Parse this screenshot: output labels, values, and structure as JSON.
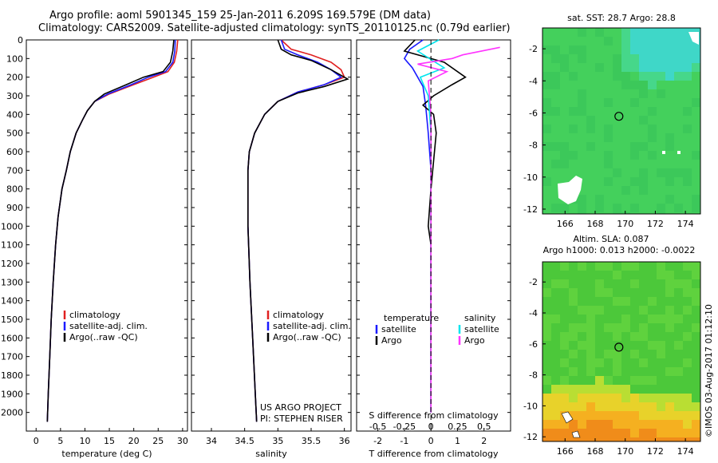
{
  "header": {
    "title_line1": "Argo profile: aoml 5901345_159 25-Jan-2011 6.209S 169.579E (DM data)",
    "title_line2": "Climatology: CARS2009. Satellite-adjusted climatology: synTS_20110125.nc (0.79d earlier)"
  },
  "side_text": "©IMOS 03-Aug-2017 01:12:10",
  "colors": {
    "climatology": "#e02020",
    "satellite": "#1a1aff",
    "argo": "#000000",
    "sat_t": "#00e5ee",
    "sat_s": "#ff33ff"
  },
  "chart_data": [
    {
      "type": "line",
      "xlabel": "temperature (deg C)",
      "xlim": [
        -2,
        31
      ],
      "ylim": [
        2100,
        0
      ],
      "xticks": [
        0,
        5,
        10,
        15,
        20,
        25,
        30
      ],
      "yticks": [
        0,
        100,
        200,
        300,
        400,
        500,
        600,
        700,
        800,
        900,
        1000,
        1100,
        1200,
        1300,
        1400,
        1500,
        1600,
        1700,
        1800,
        1900,
        2000
      ],
      "legend": [
        "climatology",
        "satellite-adj. clim.",
        "Argo(..raw -QC)"
      ],
      "series": [
        {
          "name": "climatology",
          "points": [
            [
              29.0,
              0
            ],
            [
              28.8,
              60
            ],
            [
              28.3,
              120
            ],
            [
              27.0,
              170
            ],
            [
              24.0,
              200
            ],
            [
              20.0,
              240
            ],
            [
              15.0,
              290
            ],
            [
              12.0,
              330
            ],
            [
              10.5,
              380
            ],
            [
              9.5,
              430
            ],
            [
              8.2,
              500
            ],
            [
              7.0,
              600
            ],
            [
              6.2,
              700
            ],
            [
              5.3,
              800
            ],
            [
              4.5,
              950
            ],
            [
              4.0,
              1100
            ],
            [
              3.5,
              1300
            ],
            [
              3.1,
              1500
            ],
            [
              2.8,
              1700
            ],
            [
              2.5,
              1900
            ],
            [
              2.3,
              2050
            ]
          ]
        },
        {
          "name": "satellite-adj. clim.",
          "points": [
            [
              28.5,
              0
            ],
            [
              28.4,
              60
            ],
            [
              28.0,
              120
            ],
            [
              26.5,
              170
            ],
            [
              23.0,
              200
            ],
            [
              19.5,
              240
            ],
            [
              14.7,
              290
            ],
            [
              12.0,
              330
            ],
            [
              10.5,
              380
            ],
            [
              9.5,
              430
            ],
            [
              8.2,
              500
            ],
            [
              7.0,
              600
            ],
            [
              6.2,
              700
            ],
            [
              5.3,
              800
            ],
            [
              4.5,
              950
            ],
            [
              4.0,
              1100
            ],
            [
              3.5,
              1300
            ],
            [
              3.1,
              1500
            ],
            [
              2.8,
              1700
            ],
            [
              2.5,
              1900
            ],
            [
              2.3,
              2050
            ]
          ]
        },
        {
          "name": "Argo(..raw -QC)",
          "points": [
            [
              28.2,
              0
            ],
            [
              28.0,
              60
            ],
            [
              27.5,
              120
            ],
            [
              26.0,
              170
            ],
            [
              22.0,
              200
            ],
            [
              18.5,
              240
            ],
            [
              14.0,
              290
            ],
            [
              12.0,
              330
            ],
            [
              10.5,
              380
            ],
            [
              9.5,
              430
            ],
            [
              8.2,
              500
            ],
            [
              7.0,
              600
            ],
            [
              6.2,
              700
            ],
            [
              5.3,
              800
            ],
            [
              4.5,
              950
            ],
            [
              4.0,
              1100
            ],
            [
              3.5,
              1300
            ],
            [
              3.1,
              1500
            ],
            [
              2.8,
              1700
            ],
            [
              2.5,
              1900
            ],
            [
              2.3,
              2050
            ]
          ]
        }
      ]
    },
    {
      "type": "line",
      "xlabel": "salinity",
      "xlim": [
        33.7,
        36.1
      ],
      "ylim": [
        2100,
        0
      ],
      "xticks": [
        34,
        34.5,
        35,
        35.5,
        36
      ],
      "legend": [
        "climatology",
        "satellite-adj. clim.",
        "Argo(..raw -QC)"
      ],
      "annotations": [
        "US ARGO PROJECT",
        "PI: STEPHEN RISER"
      ],
      "series": [
        {
          "name": "climatology",
          "points": [
            [
              35.05,
              0
            ],
            [
              35.2,
              50
            ],
            [
              35.5,
              80
            ],
            [
              35.8,
              120
            ],
            [
              35.95,
              160
            ],
            [
              36.0,
              200
            ],
            [
              35.7,
              240
            ],
            [
              35.3,
              280
            ],
            [
              35.0,
              330
            ],
            [
              34.8,
              400
            ],
            [
              34.65,
              500
            ],
            [
              34.57,
              600
            ],
            [
              34.55,
              700
            ],
            [
              34.55,
              1000
            ],
            [
              34.58,
              1300
            ],
            [
              34.62,
              1600
            ],
            [
              34.66,
              1900
            ],
            [
              34.68,
              2050
            ]
          ]
        },
        {
          "name": "satellite-adj. clim.",
          "points": [
            [
              35.05,
              0
            ],
            [
              35.1,
              50
            ],
            [
              35.3,
              80
            ],
            [
              35.6,
              120
            ],
            [
              35.8,
              160
            ],
            [
              35.95,
              200
            ],
            [
              35.7,
              240
            ],
            [
              35.3,
              280
            ],
            [
              35.0,
              330
            ],
            [
              34.8,
              400
            ],
            [
              34.65,
              500
            ],
            [
              34.57,
              600
            ],
            [
              34.55,
              700
            ],
            [
              34.55,
              1000
            ],
            [
              34.58,
              1300
            ],
            [
              34.62,
              1600
            ],
            [
              34.66,
              1900
            ],
            [
              34.68,
              2050
            ]
          ]
        },
        {
          "name": "Argo(..raw -QC)",
          "points": [
            [
              35.0,
              0
            ],
            [
              35.05,
              50
            ],
            [
              35.2,
              80
            ],
            [
              35.5,
              110
            ],
            [
              35.8,
              160
            ],
            [
              36.05,
              210
            ],
            [
              35.7,
              250
            ],
            [
              35.3,
              285
            ],
            [
              35.0,
              330
            ],
            [
              34.8,
              400
            ],
            [
              34.65,
              500
            ],
            [
              34.57,
              600
            ],
            [
              34.55,
              700
            ],
            [
              34.55,
              1000
            ],
            [
              34.58,
              1300
            ],
            [
              34.62,
              1600
            ],
            [
              34.66,
              1900
            ],
            [
              34.68,
              2050
            ]
          ]
        }
      ]
    },
    {
      "type": "line",
      "xlabel": "T difference from climatology",
      "xlabel_top": "S difference from climatology",
      "xlim": [
        -2.8,
        3.0
      ],
      "ylim": [
        2100,
        0
      ],
      "xticks": [
        -2,
        -1,
        0,
        1,
        2
      ],
      "xticks_top": [
        -0.5,
        -0.25,
        0,
        0.25,
        0.5
      ],
      "legend_headers": [
        "temperature",
        "salinity"
      ],
      "legend": [
        "satellite",
        "Argo",
        "satellite",
        "Argo"
      ],
      "series": [
        {
          "name": "satellite",
          "points": [
            [
              -0.3,
              0
            ],
            [
              -0.8,
              50
            ],
            [
              -1.0,
              100
            ],
            [
              -0.7,
              150
            ],
            [
              -0.3,
              250
            ],
            [
              -0.2,
              350
            ],
            [
              -0.1,
              500
            ],
            [
              0.0,
              700
            ],
            [
              0.0,
              1000
            ],
            [
              0.0,
              1500
            ],
            [
              0.0,
              2000
            ]
          ]
        },
        {
          "name": "Argo",
          "points": [
            [
              -0.6,
              0
            ],
            [
              -1.0,
              60
            ],
            [
              0.5,
              120
            ],
            [
              1.3,
              200
            ],
            [
              0.8,
              240
            ],
            [
              0.1,
              300
            ],
            [
              -0.3,
              350
            ],
            [
              0.1,
              400
            ],
            [
              0.2,
              500
            ],
            [
              0.0,
              800
            ],
            [
              -0.1,
              1000
            ],
            [
              0.0,
              1100
            ],
            [
              0.0,
              1500
            ],
            [
              0.0,
              2000
            ]
          ]
        },
        {
          "name": "satellite",
          "points": [
            [
              0.3,
              0
            ],
            [
              -0.5,
              60
            ],
            [
              0.5,
              150
            ],
            [
              -0.4,
              200
            ],
            [
              -0.1,
              300
            ],
            [
              0.0,
              500
            ],
            [
              0.0,
              800
            ],
            [
              0.0,
              1000
            ],
            [
              0.0,
              2000
            ]
          ]
        },
        {
          "name": "Argo",
          "points": [
            [
              2.6,
              40
            ],
            [
              1.2,
              80
            ],
            [
              0.8,
              100
            ],
            [
              -0.5,
              130
            ],
            [
              0.6,
              170
            ],
            [
              -0.1,
              220
            ],
            [
              0.0,
              400
            ],
            [
              0.0,
              2000
            ]
          ]
        }
      ]
    },
    {
      "type": "heatmap",
      "title": "sat. SST: 28.7  Argo: 28.8",
      "xticks": [
        166,
        168,
        170,
        172,
        174
      ],
      "yticks": [
        -2,
        -4,
        -6,
        -8,
        -10,
        -12
      ],
      "xlim": [
        164.5,
        175
      ],
      "ylim": [
        -12.3,
        -0.7
      ],
      "marker": [
        169.58,
        -6.21
      ]
    },
    {
      "type": "heatmap",
      "title": "Altim. SLA: 0.087",
      "subtitle": "Argo h1000: 0.013  h2000: -0.0022",
      "xticks": [
        166,
        168,
        170,
        172,
        174
      ],
      "yticks": [
        -2,
        -4,
        -6,
        -8,
        -10,
        -12
      ],
      "xlim": [
        164.5,
        175
      ],
      "ylim": [
        -12.3,
        -0.7
      ],
      "marker": [
        169.58,
        -6.21
      ]
    }
  ]
}
